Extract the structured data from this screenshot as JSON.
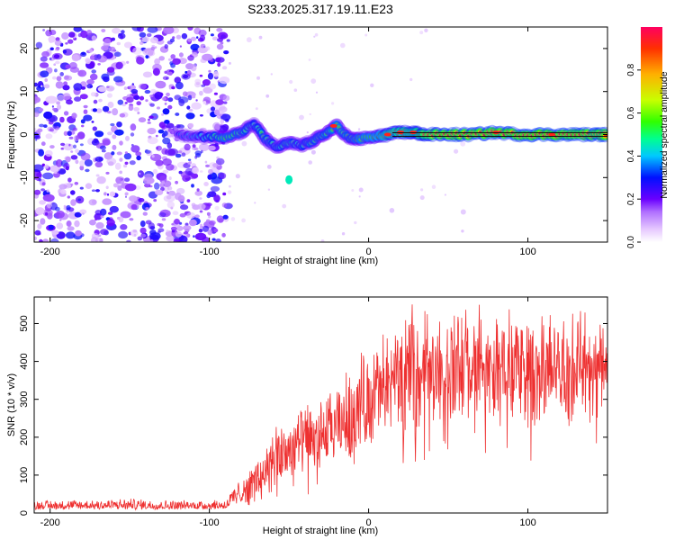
{
  "figure": {
    "title": "S233.2025.317.19.11.E23"
  },
  "chart_data": [
    {
      "type": "heatmap",
      "name": "spectrogram",
      "xlabel": "Height of straight line (km)",
      "ylabel": "Frequency (Hz)",
      "xlim": [
        -210,
        150
      ],
      "ylim": [
        -25,
        25
      ],
      "xticks": [
        -200,
        -100,
        0,
        100
      ],
      "yticks": [
        -20,
        -10,
        0,
        10,
        20
      ],
      "colorbar": {
        "label": "Normalized spectral amplitude",
        "range": [
          0,
          1
        ],
        "ticks": [
          "0.0",
          "0.2",
          "0.4",
          "0.6",
          "0.8"
        ],
        "tick_values": [
          0.0,
          0.2,
          0.4,
          0.6,
          0.8
        ],
        "colors": [
          "#ffffff",
          "#e6c8ff",
          "#b070ff",
          "#6a00ff",
          "#0010ff",
          "#00c8ff",
          "#00ff90",
          "#30ff00",
          "#c8ff00",
          "#ffb000",
          "#ff3000",
          "#ff0060"
        ]
      },
      "noise_region": {
        "x": [
          -210,
          -88
        ],
        "freq": [
          -25,
          25
        ],
        "level": 0.15
      },
      "trace_points": [
        {
          "x": -120,
          "f": 0.0,
          "a": 0.35
        },
        {
          "x": -110,
          "f": -0.5,
          "a": 0.4
        },
        {
          "x": -100,
          "f": -0.5,
          "a": 0.5
        },
        {
          "x": -90,
          "f": -0.5,
          "a": 0.6
        },
        {
          "x": -80,
          "f": 0.5,
          "a": 0.55
        },
        {
          "x": -72,
          "f": 2.5,
          "a": 0.5
        },
        {
          "x": -65,
          "f": -1.0,
          "a": 0.55
        },
        {
          "x": -58,
          "f": -3.0,
          "a": 0.5
        },
        {
          "x": -50,
          "f": -2.0,
          "a": 0.55
        },
        {
          "x": -42,
          "f": -2.5,
          "a": 0.5
        },
        {
          "x": -35,
          "f": -1.5,
          "a": 0.55
        },
        {
          "x": -28,
          "f": 0.0,
          "a": 0.55
        },
        {
          "x": -20,
          "f": 2.0,
          "a": 0.6
        },
        {
          "x": -12,
          "f": -1.0,
          "a": 0.55
        },
        {
          "x": -5,
          "f": -1.0,
          "a": 0.6
        },
        {
          "x": 5,
          "f": -0.5,
          "a": 0.65
        },
        {
          "x": 12,
          "f": 0.0,
          "a": 0.75
        },
        {
          "x": 20,
          "f": 0.5,
          "a": 0.8
        },
        {
          "x": 28,
          "f": 0.5,
          "a": 0.8
        },
        {
          "x": 35,
          "f": 0.0,
          "a": 0.85
        },
        {
          "x": 50,
          "f": 0.0,
          "a": 0.9
        },
        {
          "x": 65,
          "f": 0.0,
          "a": 0.9
        },
        {
          "x": 80,
          "f": 0.5,
          "a": 0.9
        },
        {
          "x": 95,
          "f": 0.0,
          "a": 0.9
        },
        {
          "x": 110,
          "f": 0.0,
          "a": 0.92
        },
        {
          "x": 125,
          "f": 0.0,
          "a": 0.9
        },
        {
          "x": 140,
          "f": 0.0,
          "a": 0.9
        },
        {
          "x": 150,
          "f": 0.0,
          "a": 0.9
        }
      ],
      "isolated_blob": {
        "x": -50,
        "f": -10.5,
        "a": 0.45
      },
      "reference_line": {
        "f": 0.0
      }
    },
    {
      "type": "line",
      "name": "snr",
      "xlabel": "Height of straight line (km)",
      "ylabel": "SNR (10 * v/v)",
      "xlim": [
        -210,
        150
      ],
      "ylim": [
        0,
        570
      ],
      "xticks": [
        -200,
        -100,
        0,
        100
      ],
      "yticks": [
        0,
        100,
        200,
        300,
        400,
        500
      ],
      "line_color": "#ee3030",
      "series_envelope": {
        "x": [
          -210,
          -150,
          -120,
          -90,
          -82,
          -75,
          -68,
          -60,
          -50,
          -40,
          -30,
          -20,
          -10,
          0,
          10,
          20,
          30,
          40,
          60,
          80,
          100,
          120,
          150
        ],
        "base": [
          15,
          15,
          15,
          16,
          40,
          30,
          60,
          90,
          120,
          150,
          170,
          190,
          220,
          270,
          330,
          370,
          390,
          400,
          400,
          400,
          400,
          400,
          410
        ],
        "peak": [
          35,
          40,
          35,
          38,
          90,
          120,
          160,
          220,
          280,
          300,
          320,
          340,
          420,
          460,
          500,
          540,
          560,
          560,
          560,
          560,
          560,
          550,
          560
        ]
      }
    }
  ]
}
